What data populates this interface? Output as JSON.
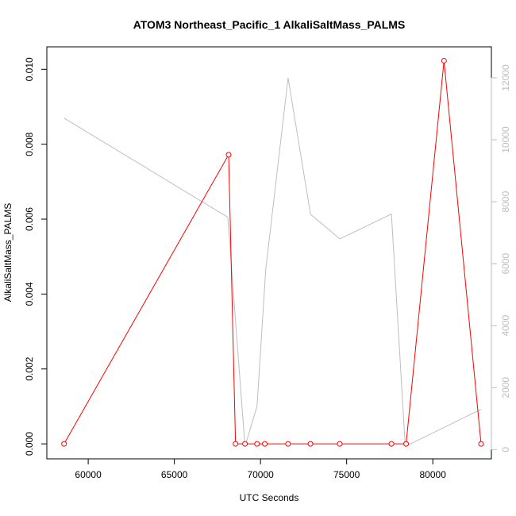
{
  "chart_data": {
    "type": "line",
    "title": "ATOM3 Northeast_Pacific_1 AlkaliSaltMass_PALMS",
    "xlabel": "UTC Seconds",
    "ylabel": "AlkaliSaltMass_PALMS",
    "xlim": [
      57600,
      83400
    ],
    "ylim": [
      -0.0004,
      0.0106
    ],
    "y2lim": [
      -300,
      13000
    ],
    "x_ticks": [
      60000,
      65000,
      70000,
      75000,
      80000
    ],
    "x_tick_labels": [
      "60000",
      "65000",
      "70000",
      "75000",
      "80000"
    ],
    "y_ticks": [
      0.0,
      0.002,
      0.004,
      0.006,
      0.008,
      0.01
    ],
    "y_tick_labels": [
      "0.000",
      "0.002",
      "0.004",
      "0.006",
      "0.008",
      "0.010"
    ],
    "y2_ticks": [
      0,
      2000,
      4000,
      6000,
      8000,
      10000,
      12000
    ],
    "y2_tick_labels": [
      "0",
      "2000",
      "4000",
      "6000",
      "8000",
      "10000",
      "12000"
    ],
    "grid": false,
    "series": [
      {
        "axis": "right",
        "color": "#bebebe",
        "markers": false,
        "x": [
          58600,
          68100,
          69100,
          69800,
          70300,
          71600,
          72900,
          74600,
          77600,
          78400,
          82800
        ],
        "y": [
          10700,
          7500,
          100,
          1400,
          5800,
          12000,
          7600,
          6800,
          7600,
          100,
          1300
        ]
      },
      {
        "axis": "left",
        "color": "#ff0000",
        "markers": true,
        "x": [
          58600,
          68150,
          68550,
          69100,
          69800,
          70250,
          71600,
          72900,
          74600,
          77600,
          78450,
          80650,
          82800
        ],
        "y": [
          0.0,
          0.00772,
          0.0,
          0.0,
          0.0,
          0.0,
          0.0,
          0.0,
          0.0,
          0.0,
          0.0,
          0.01023,
          0.0
        ]
      }
    ]
  }
}
